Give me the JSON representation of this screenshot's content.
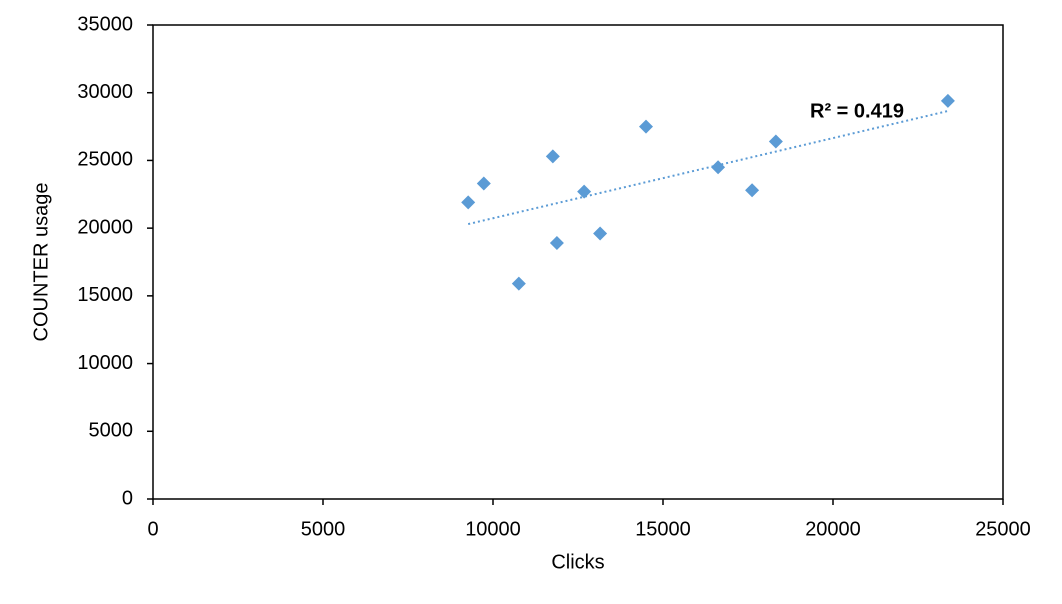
{
  "chart_data": {
    "type": "scatter",
    "x_label": "Clicks",
    "y_label": "COUNTER usage",
    "series": [
      {
        "color": "#5b9bd5",
        "x": [
          9270,
          9730,
          10760,
          11760,
          11880,
          12680,
          13150,
          14500,
          16620,
          17620,
          18320,
          23380
        ],
        "values": [
          21900,
          23300,
          15900,
          25300,
          18900,
          22700,
          19600,
          27500,
          24500,
          22800,
          26400,
          29400
        ]
      }
    ],
    "trendline": {
      "x": [
        9270,
        23380
      ],
      "values": [
        20300,
        28650
      ],
      "label": "R² = 0.419",
      "color": "#5b9bd5"
    },
    "xlim": [
      0,
      25000
    ],
    "xticks": [
      0,
      5000,
      10000,
      15000,
      20000,
      25000
    ],
    "ylim": [
      0,
      35000
    ],
    "yticks": [
      0,
      5000,
      10000,
      15000,
      20000,
      25000,
      30000,
      35000
    ],
    "grid": false
  }
}
